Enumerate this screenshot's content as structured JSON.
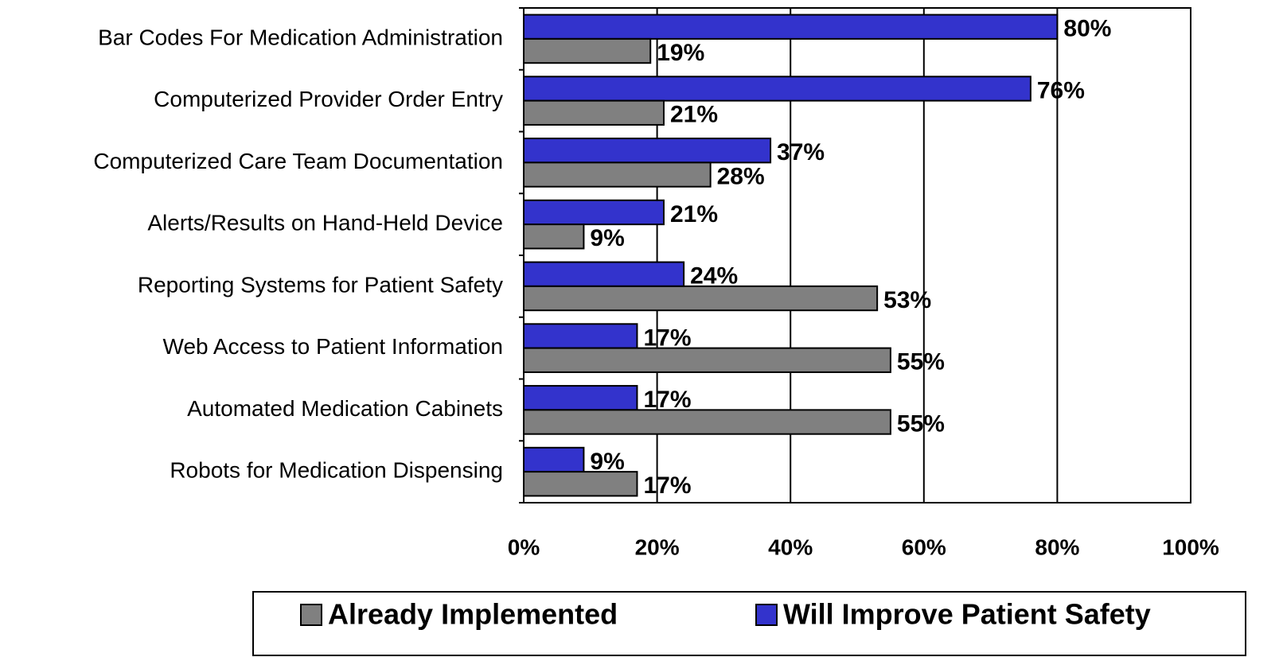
{
  "chart_data": {
    "type": "hbar",
    "categories": [
      "Bar Codes For Medication Administration",
      "Computerized Provider Order Entry",
      "Computerized Care Team Documentation",
      "Alerts/Results on Hand-Held Device",
      "Reporting Systems for Patient Safety",
      "Web Access to Patient Information",
      "Automated Medication Cabinets",
      "Robots for Medication Dispensing"
    ],
    "series": [
      {
        "name": "Already Implemented",
        "color": "#808080",
        "values": [
          19,
          21,
          28,
          9,
          53,
          55,
          55,
          17
        ],
        "value_labels": [
          "19%",
          "21%",
          "28%",
          "9%",
          "53%",
          "55%",
          "55%",
          "17%"
        ]
      },
      {
        "name": "Will Improve Patient Safety",
        "color": "#3333cc",
        "values": [
          80,
          76,
          37,
          21,
          24,
          17,
          17,
          9
        ],
        "value_labels": [
          "80%",
          "76%",
          "37%",
          "21%",
          "24%",
          "17%",
          "17%",
          "9%"
        ]
      }
    ],
    "xlim": [
      0,
      100
    ],
    "xticks": [
      {
        "value": 0,
        "label": "0%"
      },
      {
        "value": 20,
        "label": "20%"
      },
      {
        "value": 40,
        "label": "40%"
      },
      {
        "value": 60,
        "label": "60%"
      },
      {
        "value": 80,
        "label": "80%"
      },
      {
        "value": 100,
        "label": "100%"
      }
    ],
    "grid": true,
    "legend": "bottom"
  }
}
